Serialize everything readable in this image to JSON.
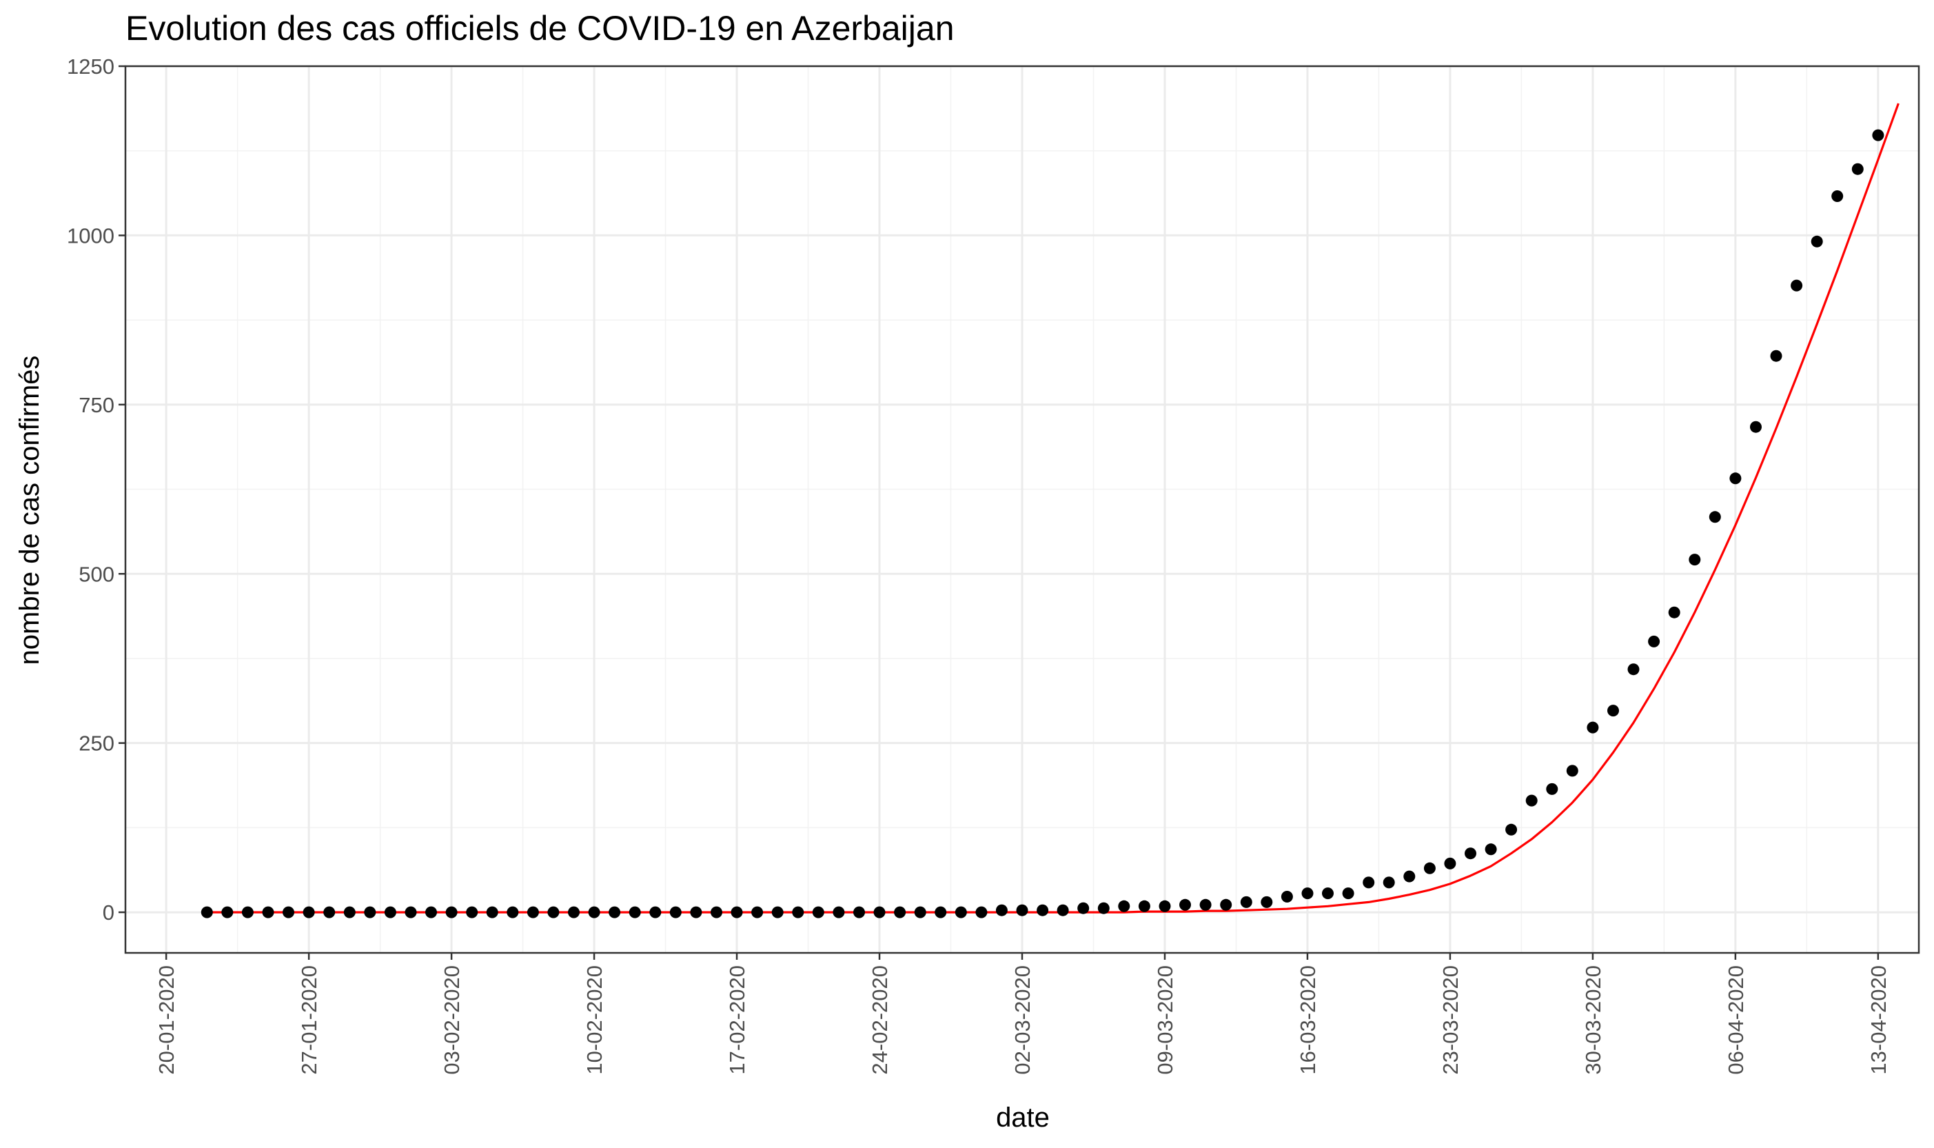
{
  "chart_data": {
    "type": "scatter",
    "title": "Evolution des cas officiels de COVID-19 en Azerbaijan",
    "xlabel": "date",
    "ylabel": "nombre de cas confirmés",
    "x_start": "22-01-2020",
    "x_end": "13-04-2020",
    "xlim": [
      "18-01-2020",
      "15-04-2020"
    ],
    "ylim": [
      -60,
      1250
    ],
    "x_ticks": [
      "20-01-2020",
      "27-01-2020",
      "03-02-2020",
      "10-02-2020",
      "17-02-2020",
      "24-02-2020",
      "02-03-2020",
      "09-03-2020",
      "16-03-2020",
      "23-03-2020",
      "30-03-2020",
      "06-04-2020",
      "13-04-2020"
    ],
    "y_ticks": [
      0,
      250,
      500,
      750,
      1000,
      1250
    ],
    "grid": true,
    "series": [
      {
        "type": "points",
        "color": "#000000",
        "values": [
          0,
          0,
          0,
          0,
          0,
          0,
          0,
          0,
          0,
          0,
          0,
          0,
          0,
          0,
          0,
          0,
          0,
          0,
          0,
          0,
          0,
          0,
          0,
          0,
          0,
          0,
          0,
          0,
          0,
          0,
          0,
          0,
          0,
          0,
          0,
          0,
          0,
          0,
          0,
          3,
          3,
          3,
          3,
          6,
          6,
          9,
          9,
          9,
          11,
          11,
          11,
          15,
          15,
          23,
          28,
          28,
          28,
          44,
          44,
          53,
          65,
          72,
          87,
          93,
          122,
          165,
          182,
          209,
          273,
          298,
          359,
          400,
          443,
          521,
          584,
          641,
          717,
          822,
          926,
          991,
          1058,
          1098,
          1148
        ]
      },
      {
        "type": "line",
        "color": "#ff0000",
        "values": [
          0,
          0,
          0,
          0,
          0,
          0,
          0,
          0,
          0,
          0,
          0,
          0,
          0,
          0,
          0,
          0,
          0,
          0,
          0,
          0,
          0,
          0,
          0,
          0,
          0,
          0,
          0,
          0,
          0,
          0,
          0,
          0,
          0,
          0,
          0,
          0,
          0,
          0,
          0,
          0,
          0,
          0,
          0,
          0,
          0,
          0,
          1,
          1,
          1,
          2,
          2,
          3,
          4,
          5,
          7,
          9,
          12,
          15,
          20,
          26,
          33,
          42,
          54,
          68,
          87,
          108,
          133,
          162,
          196,
          236,
          280,
          330,
          384,
          443,
          506,
          572,
          642,
          715,
          791,
          869,
          948,
          1030,
          1112,
          1195
        ]
      }
    ]
  }
}
